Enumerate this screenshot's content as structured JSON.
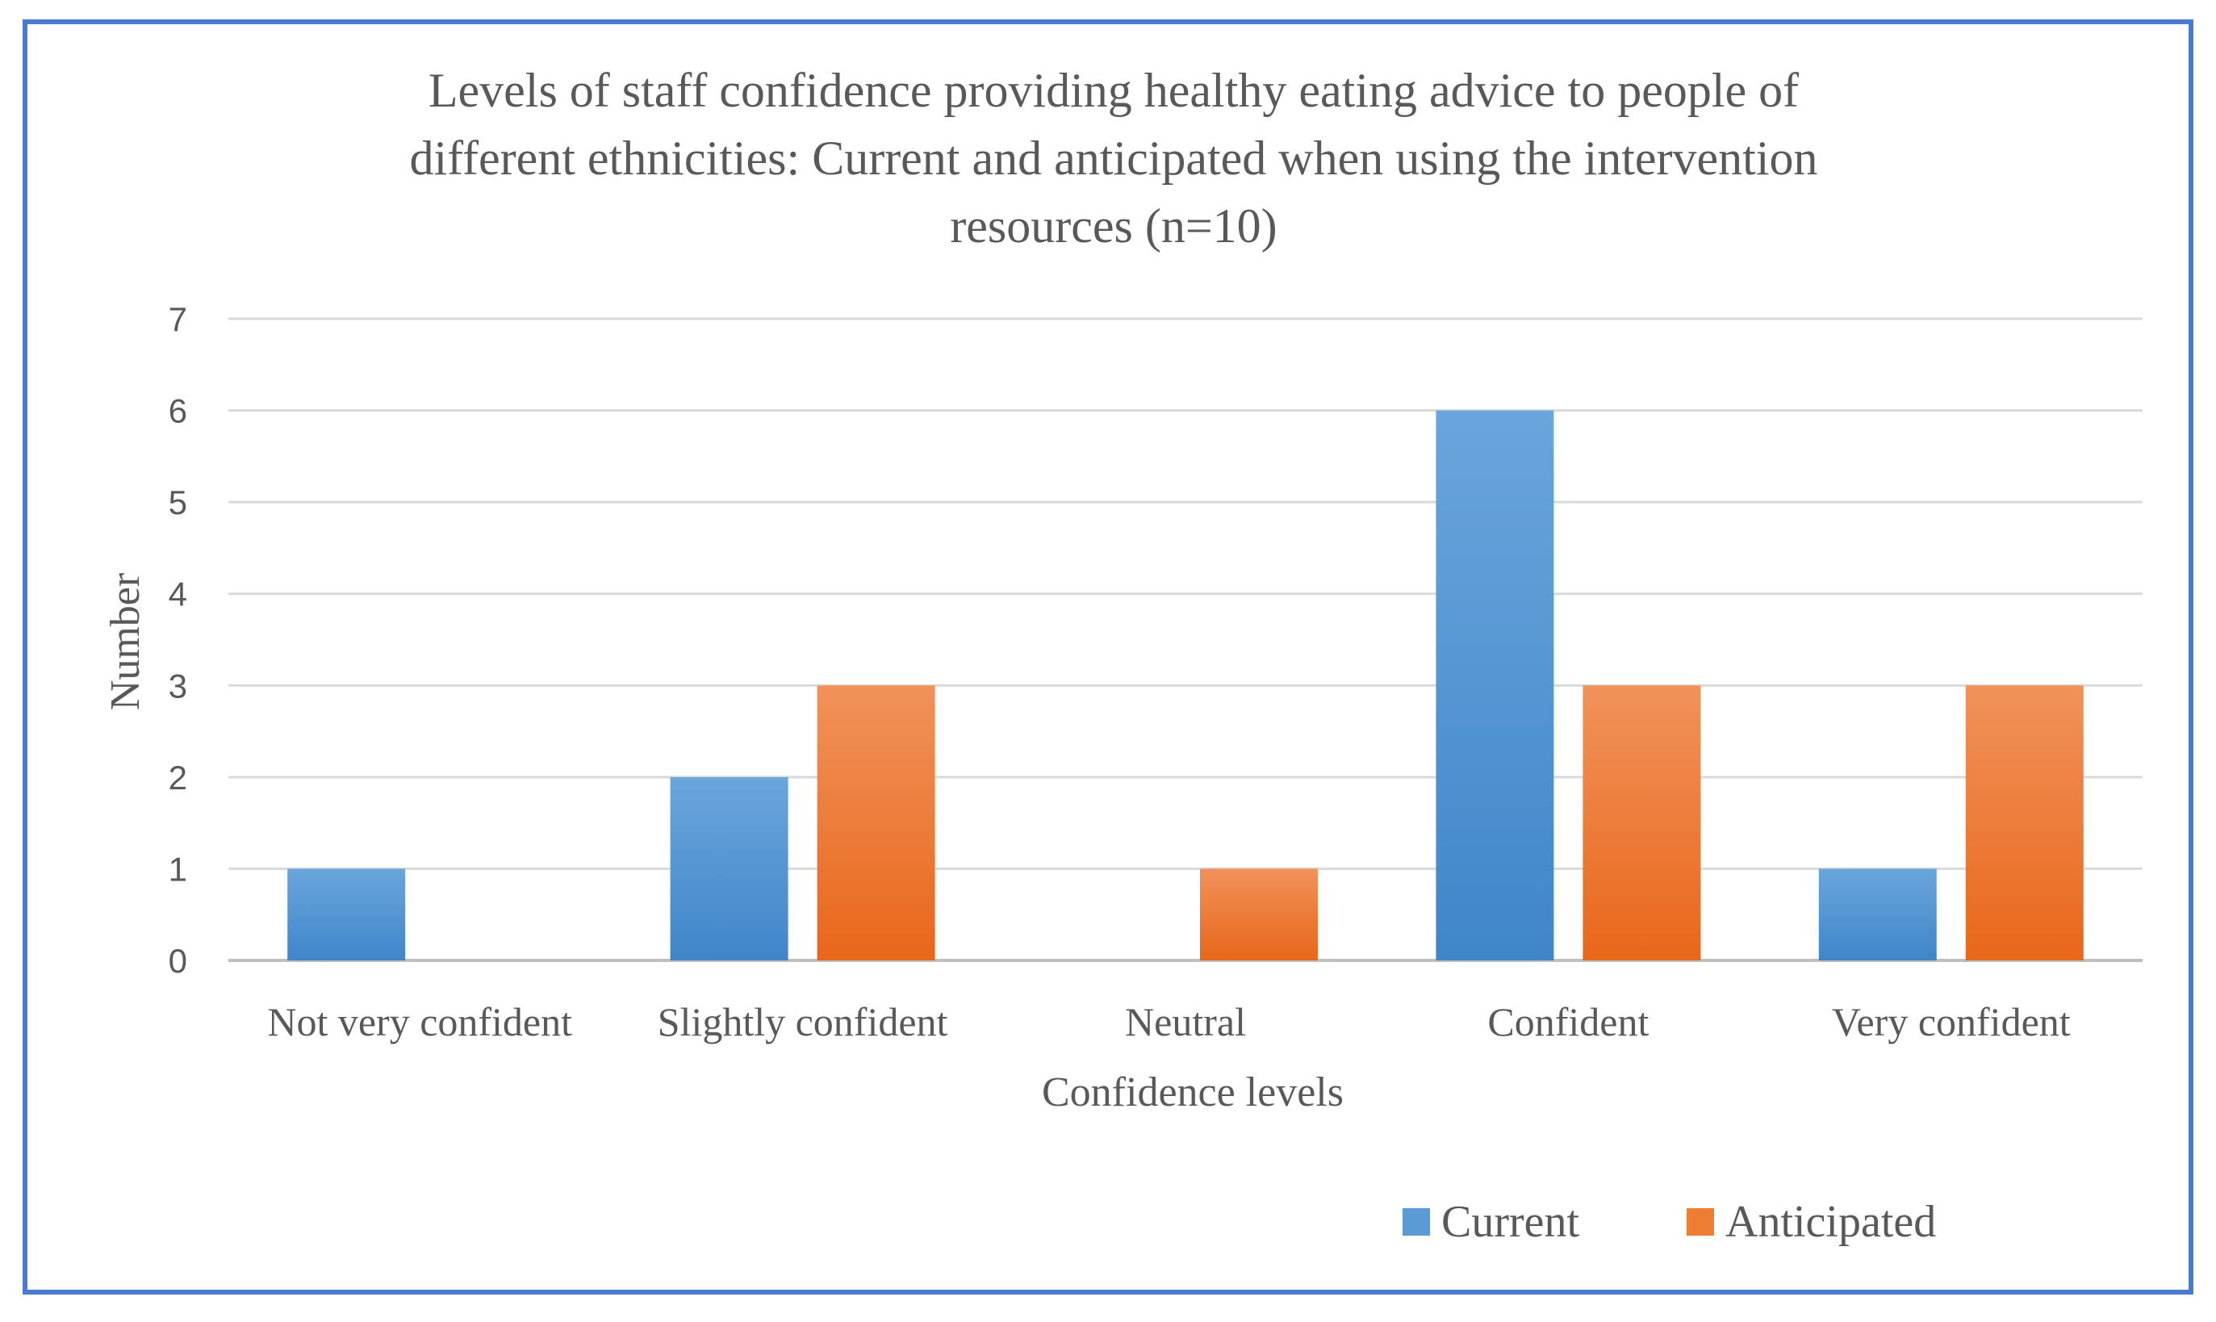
{
  "chart_data": {
    "type": "bar",
    "title_lines": [
      "Levels of staff confidence providing healthy eating advice to people of",
      "different ethnicities: Current and anticipated when using the intervention",
      "resources (n=10)"
    ],
    "categories": [
      "Not very confident",
      "Slightly confident",
      "Neutral",
      "Confident",
      "Very confident"
    ],
    "series": [
      {
        "name": "Current",
        "values": [
          1,
          2,
          0,
          6,
          1
        ],
        "color": "#5b9bd5",
        "color_dark": "#3f86c9"
      },
      {
        "name": "Anticipated",
        "values": [
          0,
          3,
          1,
          3,
          3
        ],
        "color": "#f08a4b",
        "color_dark": "#e86a1a"
      }
    ],
    "xlabel": "Confidence levels",
    "ylabel": "Number",
    "ylim": [
      0,
      7
    ],
    "yticks": [
      0,
      1,
      2,
      3,
      4,
      5,
      6,
      7
    ],
    "grid": true,
    "legend_position": "bottom-right",
    "frame_color": "#4a7bd0",
    "gridline_color": "#d9d9d9"
  }
}
